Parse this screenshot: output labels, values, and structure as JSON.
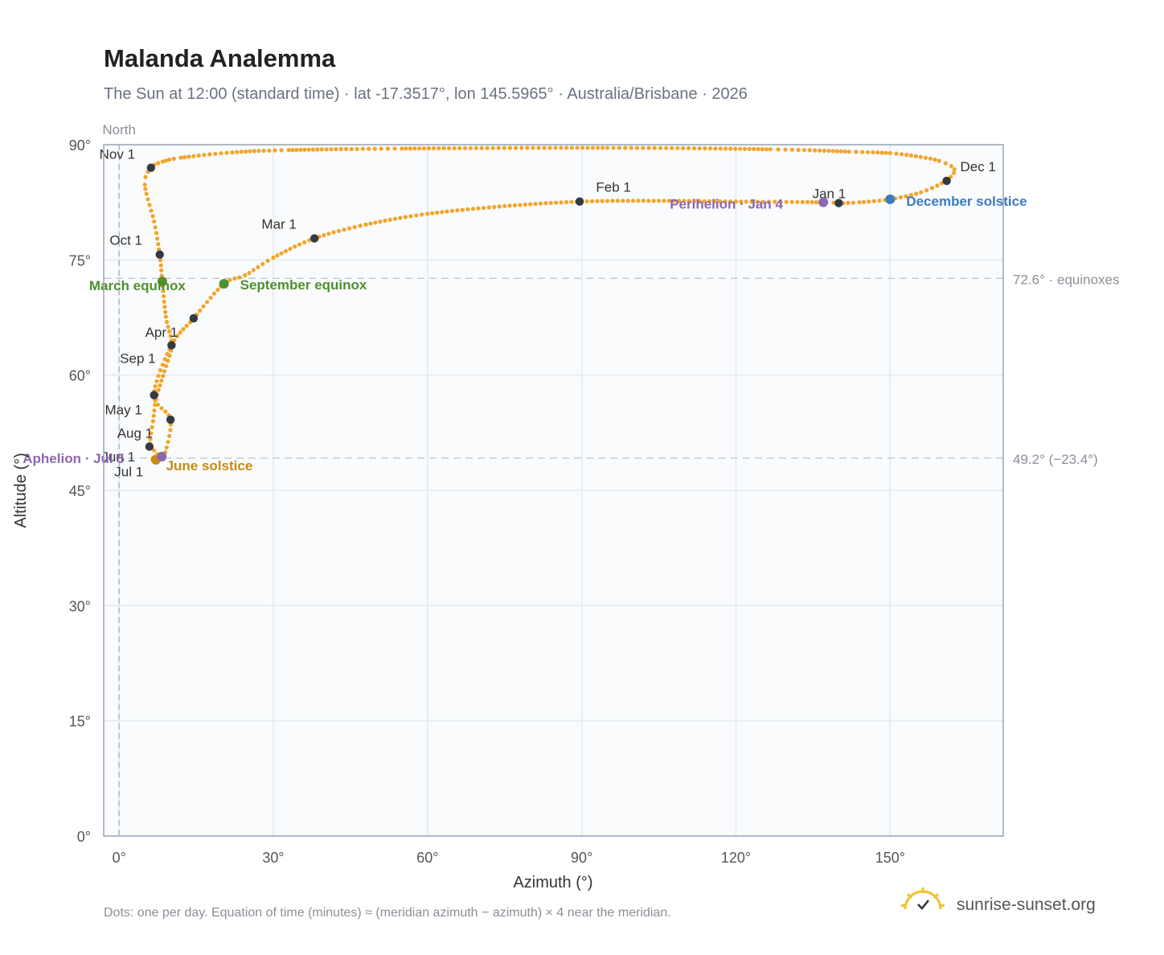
{
  "chart_data": {
    "type": "scatter",
    "title": "Malanda Analemma",
    "subtitle": "The Sun at 12:00 (standard time) · lat -17.3517°, lon 145.5965° · Australia/Brisbane · 2026",
    "xlabel": "Azimuth (°)",
    "ylabel": "Altitude (°)",
    "xlim": [
      -3,
      172
    ],
    "ylim": [
      0,
      90
    ],
    "x_ticks": [
      0,
      30,
      60,
      90,
      120,
      150
    ],
    "x_tick_labels": [
      "0°",
      "30°",
      "60°",
      "90°",
      "120°",
      "150°"
    ],
    "y_ticks": [
      0,
      15,
      30,
      45,
      60,
      75,
      90
    ],
    "y_tick_labels": [
      "0°",
      "15°",
      "30°",
      "45°",
      "60°",
      "75°",
      "90°"
    ],
    "north_label": "North",
    "north_azimuth": 0,
    "series_color": "#f2a52a",
    "marker_color": "#333a44",
    "grid": true,
    "reference_lines": [
      {
        "altitude": 72.6,
        "label": "72.6° · equinoxes"
      },
      {
        "altitude": 49.2,
        "label": "49.2° (−23.4°)"
      }
    ],
    "path_knots": [
      [
        7.9,
        49.0
      ],
      [
        8.0,
        49.3
      ],
      [
        6.8,
        50.2
      ],
      [
        6.0,
        51.1
      ],
      [
        6.6,
        54.0
      ],
      [
        7.2,
        56.9
      ],
      [
        8.8,
        60.5
      ],
      [
        10.2,
        63.9
      ],
      [
        9.1,
        67.6
      ],
      [
        8.4,
        72.2
      ],
      [
        7.9,
        75.7
      ],
      [
        6.8,
        80.0
      ],
      [
        5.0,
        84.8
      ],
      [
        6.2,
        87.0
      ],
      [
        8.5,
        87.8
      ],
      [
        12.0,
        88.3
      ],
      [
        22.0,
        89.0
      ],
      [
        33.0,
        89.3
      ],
      [
        55.0,
        89.5
      ],
      [
        95.0,
        89.6
      ],
      [
        126.7,
        89.4
      ],
      [
        142.0,
        89.1
      ],
      [
        150.0,
        88.9
      ],
      [
        155.0,
        88.5
      ],
      [
        159.5,
        87.9
      ],
      [
        162.5,
        86.8
      ],
      [
        160.8,
        85.3
      ],
      [
        156.0,
        83.8
      ],
      [
        150.0,
        82.9
      ],
      [
        144.0,
        82.5
      ],
      [
        140.0,
        82.4
      ],
      [
        137.0,
        82.5
      ],
      [
        120.0,
        82.6
      ],
      [
        105.0,
        82.7
      ],
      [
        90.0,
        82.6
      ],
      [
        75.0,
        82.0
      ],
      [
        60.0,
        81.0
      ],
      [
        48.0,
        79.6
      ],
      [
        38.0,
        77.8
      ],
      [
        30.0,
        75.3
      ],
      [
        24.5,
        73.0
      ],
      [
        20.4,
        71.9
      ],
      [
        14.5,
        67.4
      ],
      [
        10.2,
        63.9
      ],
      [
        6.8,
        57.4
      ],
      [
        10.0,
        54.2
      ],
      [
        8.8,
        49.5
      ],
      [
        7.9,
        49.0
      ]
    ],
    "month_markers": [
      {
        "label": "Jan 1",
        "x": 140.0,
        "y": 82.4
      },
      {
        "label": "Feb 1",
        "x": 89.6,
        "y": 82.6
      },
      {
        "label": "Mar 1",
        "x": 38.0,
        "y": 77.8
      },
      {
        "label": "Apr 1",
        "x": 14.5,
        "y": 67.4
      },
      {
        "label": "May 1",
        "x": 6.8,
        "y": 57.4
      },
      {
        "label": "Jun 1",
        "x": 10.0,
        "y": 54.2
      },
      {
        "label": "Jul 1",
        "x": 7.2,
        "y": 48.9
      },
      {
        "label": "Aug 1",
        "x": 5.9,
        "y": 50.7
      },
      {
        "label": "Sep 1",
        "x": 10.2,
        "y": 63.9
      },
      {
        "label": "Oct 1",
        "x": 7.9,
        "y": 75.7
      },
      {
        "label": "Nov 1",
        "x": 6.2,
        "y": 87.0
      },
      {
        "label": "Dec 1",
        "x": 161.0,
        "y": 85.3
      }
    ],
    "events": [
      {
        "label": "March equinox",
        "x": 8.4,
        "y": 72.2,
        "color": "#4f8f2f"
      },
      {
        "label": "September equinox",
        "x": 20.4,
        "y": 71.9,
        "color": "#4f8f2f"
      },
      {
        "label": "June solstice",
        "x": 7.1,
        "y": 49.0,
        "color": "#c58b12"
      },
      {
        "label": "December solstice",
        "x": 150.0,
        "y": 82.9,
        "color": "#3b7bbf"
      },
      {
        "label": "Aphelion · Jul 5",
        "x": 8.3,
        "y": 49.4,
        "color": "#8c67b0"
      },
      {
        "label": "Perihelion · Jan 4",
        "x": 137.0,
        "y": 82.5,
        "color": "#8c67b0"
      }
    ],
    "footnote": "Dots: one per day. Equation of time (minutes) ≈ (meridian azimuth − azimuth) × 4 near the meridian."
  },
  "brand": {
    "name": "sunrise-sunset.org",
    "icon": "sun-check-icon"
  }
}
